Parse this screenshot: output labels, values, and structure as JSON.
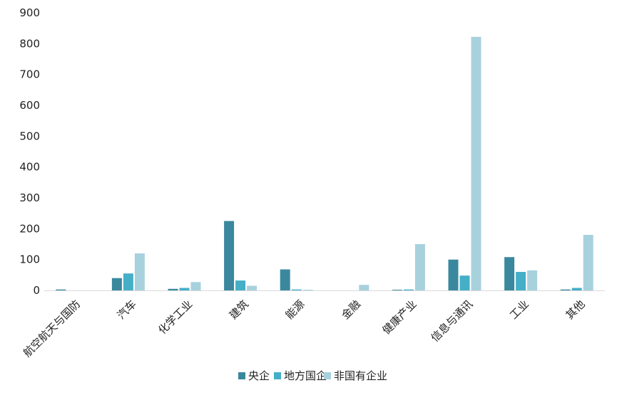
{
  "chart_data": {
    "type": "bar",
    "title": "",
    "xlabel": "",
    "ylabel": "",
    "ylim": [
      0,
      900
    ],
    "yticks": [
      0,
      100,
      200,
      300,
      400,
      500,
      600,
      700,
      800,
      900
    ],
    "grid": false,
    "legend_position": "bottom",
    "categories": [
      "航空航天与国防",
      "汽车",
      "化学工业",
      "建筑",
      "能源",
      "金融",
      "健康产业",
      "信息与通讯",
      "工业",
      "其他"
    ],
    "series": [
      {
        "name": "央企",
        "color": "#3a889e",
        "values": [
          3,
          40,
          5,
          225,
          68,
          0,
          2,
          100,
          108,
          3
        ]
      },
      {
        "name": "地方国企",
        "color": "#45afc8",
        "values": [
          0,
          55,
          8,
          32,
          3,
          0,
          3,
          48,
          60,
          8
        ]
      },
      {
        "name": "非国有企业",
        "color": "#a7d1dd",
        "values": [
          0,
          120,
          27,
          15,
          2,
          18,
          150,
          822,
          65,
          180
        ]
      }
    ]
  }
}
